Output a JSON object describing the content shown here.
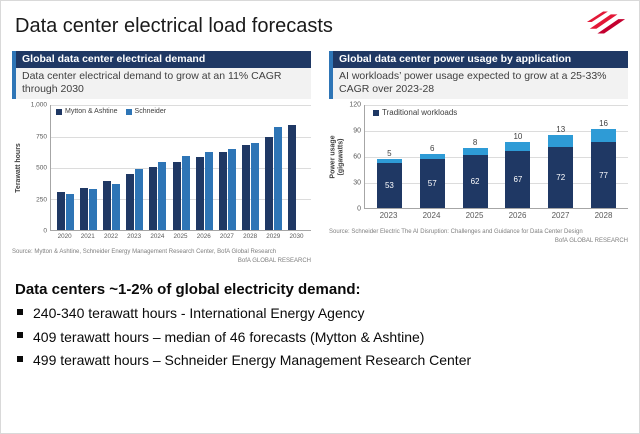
{
  "page": {
    "title": "Data center electrical load forecasts"
  },
  "left_panel": {
    "title": "Global data center electrical demand",
    "subtitle": "Data center electrical demand to grow at an 11% CAGR through 2030",
    "source": "Source: Mytton & Ashtine, Schneider Energy Management Research Center, BofA Global Research",
    "brand": "BofA GLOBAL RESEARCH"
  },
  "right_panel": {
    "title": "Global data center power usage by application",
    "subtitle": "AI workloads’ power usage expected to grow at a 25-33% CAGR over 2023-28",
    "source": "Source: Schneider Electric The AI Disruption: Challenges and Guidance for Data Center Design",
    "brand": "BofA GLOBAL RESEARCH"
  },
  "summary": {
    "heading": "Data centers ~1-2% of global electricity demand:",
    "bullets": [
      "240-340 terawatt hours - International Energy Agency",
      "409 terawatt hours – median of 46 forecasts (Mytton & Ashtine)",
      "499 terawatt hours – Schneider Energy Management Research Center"
    ]
  },
  "colors": {
    "navy": "#1F3864",
    "blue": "#2E75B6",
    "light_blue": "#2E9BD6",
    "logo_red": "#E31837",
    "logo_dark_red": "#C3002F",
    "accent": "#2E75B6"
  },
  "chart_data": [
    {
      "type": "bar",
      "stacked": false,
      "title": "Global data center electrical demand",
      "xlabel": "",
      "ylabel": "Terawatt hours",
      "ylim": [
        0,
        1000
      ],
      "yticks": [
        "1,000",
        "750",
        "500",
        "250",
        "0"
      ],
      "grid": true,
      "legend_position": "top-left",
      "categories": [
        "2020",
        "2021",
        "2022",
        "2023",
        "2024",
        "2025",
        "2026",
        "2027",
        "2028",
        "2029",
        "2030"
      ],
      "series": [
        {
          "name": "Mytton & Ashtine",
          "color": "#1F3864",
          "values": [
            310,
            340,
            395,
            455,
            505,
            550,
            590,
            625,
            680,
            745,
            840
          ]
        },
        {
          "name": "Schneider",
          "color": "#2E75B6",
          "values": [
            290,
            330,
            375,
            490,
            545,
            595,
            625,
            655,
            700,
            830,
            null
          ]
        }
      ]
    },
    {
      "type": "bar",
      "stacked": true,
      "title": "Global data center power usage by application",
      "xlabel": "",
      "ylabel": "Power usage (gigawatts)",
      "ylim": [
        0,
        120
      ],
      "yticks": [
        "120",
        "90",
        "60",
        "30",
        "0"
      ],
      "grid": true,
      "legend": [
        "Traditional workloads"
      ],
      "legend_position": "top-left",
      "categories": [
        "2023",
        "2024",
        "2025",
        "2026",
        "2027",
        "2028"
      ],
      "series": [
        {
          "name": "Traditional workloads",
          "color": "#1F3864",
          "values": [
            53,
            57,
            62,
            67,
            72,
            77
          ],
          "label_inside": true,
          "label_color": "#FFFFFF"
        },
        {
          "name": "AI workloads",
          "color": "#2E9BD6",
          "values": [
            5,
            6,
            8,
            10,
            13,
            16
          ],
          "label_inside": false
        }
      ]
    }
  ]
}
